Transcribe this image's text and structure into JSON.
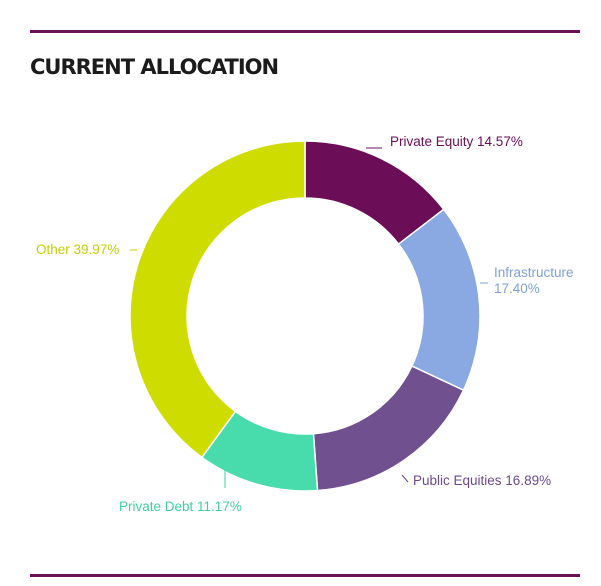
{
  "header": {
    "title": "CURRENT ALLOCATION"
  },
  "colors": {
    "rule": "#6b1157",
    "title": "#1b1b1b"
  },
  "chart_data": {
    "type": "pie",
    "variant": "donut",
    "title": "CURRENT ALLOCATION",
    "units": "%",
    "start_angle_deg": 0,
    "direction": "clockwise",
    "slices": [
      {
        "name": "Private Equity",
        "value": 14.57,
        "label": "Private Equity 14.57%",
        "color": "#6b0d57",
        "label_color": "#6b0d57"
      },
      {
        "name": "Infrastructure",
        "value": 17.4,
        "label_lines": [
          "Infrastructure",
          "17.40%"
        ],
        "color": "#8aa8e2",
        "label_color": "#7f9fdc"
      },
      {
        "name": "Public Equities",
        "value": 16.89,
        "label": "Public Equities 16.89%",
        "color": "#715090",
        "label_color": "#6a4b8c"
      },
      {
        "name": "Private Debt",
        "value": 11.17,
        "label": "Private Debt 11.17%",
        "color": "#48dbac",
        "label_color": "#3fcf9f"
      },
      {
        "name": "Other",
        "value": 39.97,
        "label": "Other 39.97%",
        "color": "#cfdc00",
        "label_color": "#c2cf00"
      }
    ]
  }
}
